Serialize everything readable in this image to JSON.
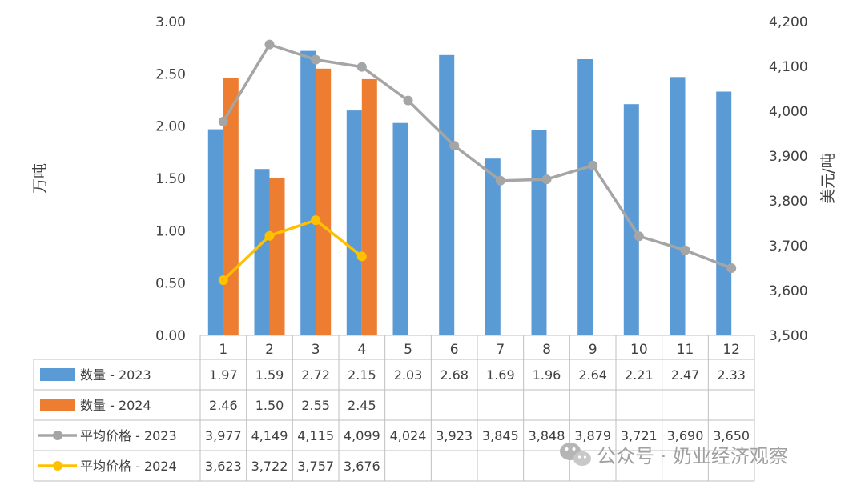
{
  "chart_data": {
    "type": "bar",
    "categories": [
      "1",
      "2",
      "3",
      "4",
      "5",
      "6",
      "7",
      "8",
      "9",
      "10",
      "11",
      "12"
    ],
    "y_left": {
      "label": "万吨",
      "range": [
        0,
        3
      ],
      "ticks": [
        "0.00",
        "0.50",
        "1.00",
        "1.50",
        "2.00",
        "2.50",
        "3.00"
      ]
    },
    "y_right": {
      "label": "美元/吨",
      "range": [
        3500,
        4200
      ],
      "ticks": [
        "3,500",
        "3,600",
        "3,700",
        "3,800",
        "3,900",
        "4,000",
        "4,100",
        "4,200"
      ]
    },
    "series": [
      {
        "name": "数量 - 2023",
        "kind": "bar",
        "axis": "left",
        "color": "#5b9bd5",
        "values": [
          1.97,
          1.59,
          2.72,
          2.15,
          2.03,
          2.68,
          1.69,
          1.96,
          2.64,
          2.21,
          2.47,
          2.33
        ],
        "labels": [
          "1.97",
          "1.59",
          "2.72",
          "2.15",
          "2.03",
          "2.68",
          "1.69",
          "1.96",
          "2.64",
          "2.21",
          "2.47",
          "2.33"
        ]
      },
      {
        "name": "数量 - 2024",
        "kind": "bar",
        "axis": "left",
        "color": "#ed7d31",
        "values": [
          2.46,
          1.5,
          2.55,
          2.45,
          null,
          null,
          null,
          null,
          null,
          null,
          null,
          null
        ],
        "labels": [
          "2.46",
          "1.50",
          "2.55",
          "2.45",
          "",
          "",
          "",
          "",
          "",
          "",
          "",
          ""
        ]
      },
      {
        "name": "平均价格 - 2023",
        "kind": "line",
        "axis": "right",
        "color": "#a5a5a5",
        "values": [
          3977,
          4149,
          4115,
          4099,
          4024,
          3923,
          3845,
          3848,
          3879,
          3721,
          3690,
          3650
        ],
        "labels": [
          "3,977",
          "4,149",
          "4,115",
          "4,099",
          "4,024",
          "3,923",
          "3,845",
          "3,848",
          "3,879",
          "3,721",
          "3,690",
          "3,650"
        ]
      },
      {
        "name": "平均价格 - 2024",
        "kind": "line",
        "axis": "right",
        "color": "#ffc000",
        "values": [
          3623,
          3722,
          3757,
          3676,
          null,
          null,
          null,
          null,
          null,
          null,
          null,
          null
        ],
        "labels": [
          "3,623",
          "3,722",
          "3,757",
          "3,676",
          "",
          "",
          "",
          "",
          "",
          "",
          "",
          ""
        ]
      }
    ],
    "grid": false,
    "legend": "data-table"
  },
  "watermark": {
    "text": "公众号 · 奶业经济观察",
    "icon": "wechat-icon"
  }
}
